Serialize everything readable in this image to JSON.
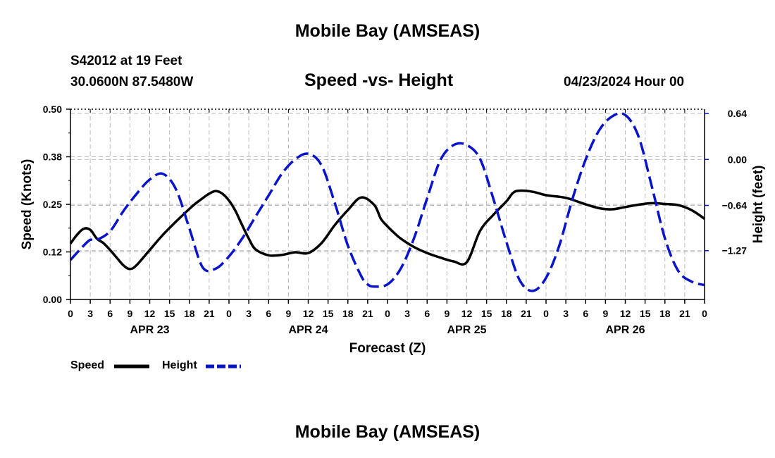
{
  "header": {
    "title": "Mobile Bay (AMSEAS)",
    "station": "S42012 at 19 Feet",
    "coordinates": "30.0600N  87.5480W",
    "chart_subtitle": "Speed -vs- Height",
    "datetime": "04/23/2024 Hour 00"
  },
  "footer": {
    "title": "Mobile Bay (AMSEAS)"
  },
  "legend": {
    "speed_label": "Speed",
    "height_label": "Height"
  },
  "colors": {
    "speed": "#000000",
    "height": "#0a14c8",
    "grid": "#bbbbbb",
    "axis": "#000000"
  },
  "chart_data": {
    "type": "line",
    "title": "Speed -vs- Height",
    "xlabel": "Forecast (Z)",
    "ylabel": "Speed (Knots)",
    "ylabel_right": "Height (feet)",
    "x_range": [
      0,
      96
    ],
    "ylim": [
      0,
      0.5
    ],
    "ylim_right": [
      -1.95,
      0.7
    ],
    "left_ticks": [
      {
        "value": 0.0,
        "label": "0.00"
      },
      {
        "value": 0.125,
        "label": "0.12"
      },
      {
        "value": 0.25,
        "label": "0.25"
      },
      {
        "value": 0.375,
        "label": "0.38"
      },
      {
        "value": 0.5,
        "label": "0.50"
      }
    ],
    "right_ticks": [
      {
        "value": 0.64,
        "label": "0.64"
      },
      {
        "value": 0.0,
        "label": "0.00"
      },
      {
        "value": -0.64,
        "label": "−0.64"
      },
      {
        "value": -1.27,
        "label": "−1.27"
      }
    ],
    "x_tick_labels": [
      "0",
      "3",
      "6",
      "9",
      "12",
      "15",
      "18",
      "21",
      "0",
      "3",
      "6",
      "9",
      "12",
      "15",
      "18",
      "21",
      "0",
      "3",
      "6",
      "9",
      "12",
      "15",
      "18",
      "21",
      "0",
      "3",
      "6",
      "9",
      "12",
      "15",
      "18",
      "21",
      "0"
    ],
    "x_tick_hours": [
      0,
      3,
      6,
      9,
      12,
      15,
      18,
      21,
      24,
      27,
      30,
      33,
      36,
      39,
      42,
      45,
      48,
      51,
      54,
      57,
      60,
      63,
      66,
      69,
      72,
      75,
      78,
      81,
      84,
      87,
      90,
      93,
      96
    ],
    "day_labels": [
      {
        "hour": 12,
        "label": "APR 23"
      },
      {
        "hour": 36,
        "label": "APR 24"
      },
      {
        "hour": 60,
        "label": "APR 25"
      },
      {
        "hour": 84,
        "label": "APR 26"
      }
    ],
    "series": [
      {
        "name": "Speed",
        "axis": "left",
        "style": "solid",
        "x": [
          0,
          1,
          2,
          3,
          4,
          5,
          6,
          7,
          8,
          9,
          10,
          12,
          14,
          16,
          18,
          19,
          20,
          21,
          22,
          23,
          24,
          25,
          26,
          27,
          28,
          30,
          32,
          34,
          36,
          38,
          40,
          42,
          44,
          46,
          47,
          48,
          49,
          50,
          52,
          54,
          56,
          58,
          60,
          62,
          64,
          66,
          67,
          68,
          70,
          72,
          74,
          75,
          76,
          77,
          78,
          80,
          82,
          84,
          86,
          88,
          90,
          92,
          94,
          96
        ],
        "y": [
          0.147,
          0.17,
          0.186,
          0.183,
          0.16,
          0.148,
          0.13,
          0.11,
          0.09,
          0.08,
          0.09,
          0.13,
          0.17,
          0.205,
          0.238,
          0.253,
          0.266,
          0.278,
          0.285,
          0.278,
          0.26,
          0.232,
          0.195,
          0.16,
          0.132,
          0.116,
          0.117,
          0.124,
          0.122,
          0.148,
          0.195,
          0.235,
          0.268,
          0.248,
          0.212,
          0.192,
          0.175,
          0.16,
          0.138,
          0.122,
          0.11,
          0.1,
          0.098,
          0.18,
          0.222,
          0.258,
          0.28,
          0.286,
          0.283,
          0.274,
          0.27,
          0.267,
          0.262,
          0.256,
          0.25,
          0.24,
          0.237,
          0.243,
          0.249,
          0.253,
          0.251,
          0.248,
          0.235,
          0.212
        ]
      },
      {
        "name": "Height",
        "axis": "right",
        "style": "dashed",
        "x": [
          0,
          2,
          3,
          4,
          6,
          8,
          10,
          12,
          14,
          16,
          18,
          20,
          22,
          24,
          26,
          28,
          30,
          32,
          34,
          36,
          38,
          40,
          42,
          44,
          45,
          46,
          48,
          50,
          52,
          54,
          56,
          58,
          60,
          62,
          64,
          66,
          68,
          70,
          72,
          74,
          76,
          78,
          80,
          82,
          84,
          86,
          88,
          90,
          92,
          94,
          96
        ],
        "y": [
          -1.4,
          -1.2,
          -1.12,
          -1.12,
          -1.0,
          -0.72,
          -0.48,
          -0.28,
          -0.2,
          -0.42,
          -0.96,
          -1.5,
          -1.52,
          -1.35,
          -1.1,
          -0.8,
          -0.5,
          -0.2,
          0.0,
          0.08,
          -0.08,
          -0.6,
          -1.2,
          -1.62,
          -1.74,
          -1.77,
          -1.74,
          -1.52,
          -1.1,
          -0.54,
          -0.01,
          0.2,
          0.2,
          0.01,
          -0.54,
          -1.15,
          -1.68,
          -1.83,
          -1.65,
          -1.2,
          -0.55,
          0.0,
          0.4,
          0.6,
          0.62,
          0.32,
          -0.37,
          -1.1,
          -1.55,
          -1.7,
          -1.75
        ]
      }
    ]
  }
}
